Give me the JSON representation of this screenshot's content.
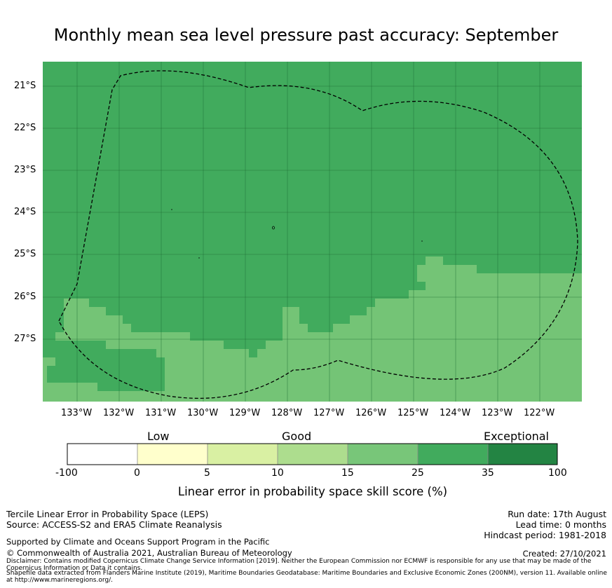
{
  "title": "Monthly mean sea level pressure past accuracy: September",
  "map": {
    "lat_labels": [
      "21°S",
      "22°S",
      "23°S",
      "24°S",
      "25°S",
      "26°S",
      "27°S"
    ],
    "lon_labels": [
      "133°W",
      "132°W",
      "131°W",
      "130°W",
      "129°W",
      "128°W",
      "127°W",
      "126°W",
      "125°W",
      "124°W",
      "123°W",
      "122°W"
    ],
    "colors": {
      "good_25_35": "#41ab5d",
      "good_15_25": "#74c476",
      "grid": "#1e6b33",
      "boundary": "#000000"
    }
  },
  "colorbar": {
    "categories": [
      "Low",
      "Good",
      "Exceptional"
    ],
    "ticks": [
      "-100",
      "0",
      "5",
      "10",
      "15",
      "25",
      "35",
      "100"
    ],
    "colors": [
      "#ffffff",
      "#ffffcc",
      "#d9f0a3",
      "#addd8e",
      "#78c679",
      "#41ab5d",
      "#238443"
    ],
    "label": "Linear error in probability space skill score (%)"
  },
  "footer": {
    "left_line1": "Tercile Linear Error in Probability Space (LEPS)",
    "left_line2": "Source: ACCESS-S2 and ERA5 Climate Reanalysis",
    "supported": "Supported by Climate and Oceans Support Program in the Pacific",
    "copyright": "© Commonwealth of Australia 2021, Australian Bureau of Meteorology",
    "disclaimer": "Disclaimer: Contains modified Copernicus Climate Change Service Information [2019]. Neither the European Commission nor ECMWF is responsible for any use that may be made of the Copernicus Information or Data it contains.",
    "shapefile": "Shapefile data extracted from Flanders Marine Institute (2019), Maritime Boundaries Geodatabase: Maritime Boundaries and Exclusive Economic Zones (200NM), version 11. Available online at http://www.marineregions.org/.",
    "run_date": "Run date: 17th August",
    "lead_time": "Lead time: 0 months",
    "hindcast": "Hindcast period: 1981-2018",
    "created": "Created: 27/10/2021"
  }
}
